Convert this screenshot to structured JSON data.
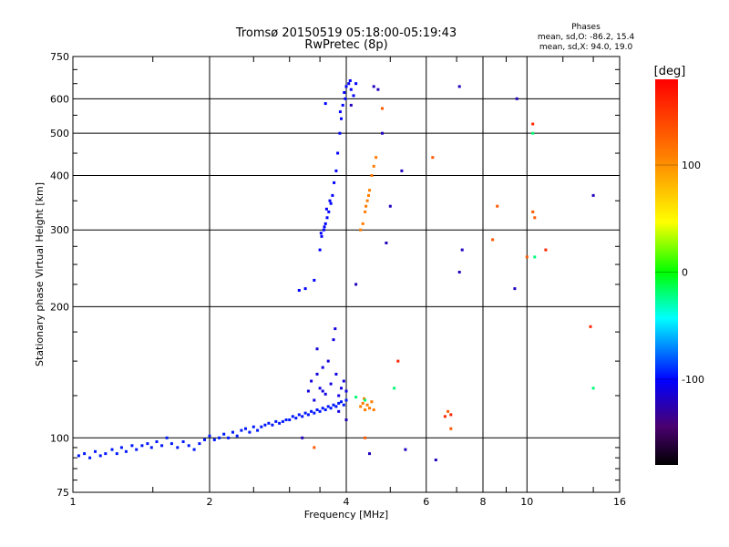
{
  "chart_data": {
    "type": "scatter",
    "title": "Tromsø 20150519 05:18:00-05:19:43",
    "subtitle": "RwPretec (8p)",
    "xlabel": "Frequency [MHz]",
    "ylabel": "Stationary phase Virtual Height [km]",
    "x_scale": "log",
    "y_scale": "log",
    "xlim": [
      1,
      16
    ],
    "ylim": [
      75,
      750
    ],
    "x_ticks": [
      1,
      2,
      4,
      6,
      8,
      10,
      16
    ],
    "x_tick_labels": [
      "1",
      "2",
      "4",
      "6",
      "8",
      "10",
      "16"
    ],
    "y_ticks": [
      75,
      100,
      200,
      300,
      400,
      500,
      600,
      750
    ],
    "y_tick_labels": [
      "75",
      "100",
      "200",
      "300",
      "400",
      "500",
      "600",
      "750"
    ],
    "grid": true,
    "phases": {
      "title": "Phases",
      "line_o": "mean, sd,O: -86.2, 15.4",
      "line_x": "mean, sd,X:  94.0, 19.0"
    },
    "colorbar": {
      "label": "[deg]",
      "min": -180,
      "max": 180,
      "ticks": [
        100,
        0,
        -100
      ],
      "tick_labels": [
        "100",
        "0",
        "-100"
      ]
    },
    "series": [
      {
        "phase_deg": -95,
        "points": [
          [
            1.03,
            91
          ],
          [
            1.06,
            92
          ],
          [
            1.09,
            90
          ],
          [
            1.12,
            93
          ],
          [
            1.15,
            91
          ],
          [
            1.18,
            92
          ],
          [
            1.22,
            94
          ],
          [
            1.25,
            92
          ],
          [
            1.28,
            95
          ],
          [
            1.31,
            93
          ],
          [
            1.35,
            96
          ],
          [
            1.38,
            94
          ],
          [
            1.42,
            96
          ],
          [
            1.46,
            97
          ],
          [
            1.49,
            95
          ],
          [
            1.53,
            98
          ],
          [
            1.57,
            96
          ],
          [
            1.61,
            100
          ],
          [
            1.65,
            97
          ],
          [
            1.7,
            95
          ],
          [
            1.75,
            98
          ],
          [
            1.8,
            96
          ],
          [
            1.85,
            94
          ],
          [
            1.9,
            97
          ],
          [
            1.95,
            99
          ],
          [
            2.0,
            101
          ],
          [
            2.05,
            99
          ],
          [
            2.1,
            100
          ],
          [
            2.15,
            102
          ],
          [
            2.2,
            100
          ],
          [
            2.25,
            103
          ],
          [
            2.3,
            101
          ],
          [
            2.35,
            104
          ],
          [
            2.4,
            105
          ],
          [
            2.45,
            103
          ],
          [
            2.5,
            106
          ],
          [
            2.55,
            104
          ],
          [
            2.6,
            106
          ],
          [
            2.65,
            107
          ],
          [
            2.7,
            108
          ],
          [
            2.75,
            107
          ],
          [
            2.8,
            109
          ],
          [
            2.85,
            108
          ],
          [
            2.9,
            109
          ],
          [
            2.95,
            110
          ],
          [
            3.0,
            110
          ],
          [
            3.05,
            112
          ],
          [
            3.1,
            111
          ],
          [
            3.15,
            113
          ],
          [
            3.2,
            112
          ],
          [
            3.25,
            114
          ],
          [
            3.3,
            113
          ],
          [
            3.35,
            115
          ],
          [
            3.4,
            114
          ],
          [
            3.45,
            116
          ],
          [
            3.5,
            115
          ],
          [
            3.55,
            117
          ],
          [
            3.6,
            116
          ],
          [
            3.65,
            118
          ],
          [
            3.7,
            117
          ],
          [
            3.75,
            119
          ],
          [
            3.8,
            118
          ],
          [
            3.85,
            120
          ],
          [
            3.9,
            121
          ],
          [
            3.95,
            119
          ],
          [
            4.0,
            122
          ]
        ]
      },
      {
        "phase_deg": -110,
        "points": [
          [
            3.3,
            128
          ],
          [
            3.35,
            135
          ],
          [
            3.4,
            122
          ],
          [
            3.45,
            140
          ],
          [
            3.5,
            130
          ],
          [
            3.55,
            145
          ],
          [
            3.6,
            126
          ],
          [
            3.65,
            150
          ],
          [
            3.7,
            133
          ],
          [
            3.75,
            168
          ],
          [
            3.78,
            178
          ],
          [
            3.8,
            140
          ],
          [
            3.85,
            125
          ],
          [
            3.9,
            130
          ],
          [
            3.95,
            135
          ],
          [
            4.0,
            128
          ],
          [
            3.45,
            160
          ],
          [
            3.55,
            128
          ],
          [
            3.85,
            115
          ]
        ]
      },
      {
        "phase_deg": -100,
        "points": [
          [
            3.15,
            218
          ],
          [
            3.25,
            220
          ],
          [
            3.4,
            230
          ],
          [
            3.5,
            270
          ],
          [
            3.53,
            290
          ],
          [
            3.57,
            300
          ],
          [
            3.6,
            310
          ],
          [
            3.63,
            320
          ],
          [
            3.66,
            330
          ],
          [
            3.7,
            345
          ],
          [
            3.73,
            360
          ],
          [
            3.76,
            385
          ],
          [
            3.8,
            410
          ],
          [
            3.83,
            450
          ],
          [
            3.87,
            500
          ],
          [
            3.9,
            540
          ],
          [
            3.93,
            580
          ],
          [
            3.96,
            620
          ],
          [
            4.0,
            640
          ],
          [
            4.05,
            650
          ],
          [
            4.1,
            630
          ],
          [
            4.15,
            610
          ],
          [
            4.2,
            650
          ],
          [
            3.52,
            295
          ],
          [
            3.58,
            305
          ],
          [
            3.62,
            335
          ],
          [
            3.68,
            350
          ],
          [
            3.88,
            560
          ],
          [
            3.98,
            600
          ],
          [
            4.08,
            660
          ],
          [
            3.6,
            585
          ]
        ]
      },
      {
        "phase_deg": 110,
        "points": [
          [
            4.3,
            300
          ],
          [
            4.35,
            310
          ],
          [
            4.4,
            330
          ],
          [
            4.45,
            350
          ],
          [
            4.5,
            370
          ],
          [
            4.55,
            400
          ],
          [
            4.6,
            420
          ],
          [
            4.65,
            440
          ],
          [
            4.48,
            360
          ],
          [
            4.42,
            340
          ],
          [
            4.3,
            118
          ],
          [
            4.35,
            120
          ],
          [
            4.4,
            116
          ],
          [
            4.45,
            119
          ],
          [
            4.5,
            117
          ],
          [
            4.55,
            121
          ],
          [
            4.38,
            123
          ],
          [
            4.6,
            116
          ]
        ]
      },
      {
        "phase_deg": -120,
        "points": [
          [
            4.6,
            640
          ],
          [
            4.7,
            630
          ],
          [
            5.3,
            410
          ],
          [
            4.1,
            580
          ],
          [
            4.8,
            500
          ],
          [
            5.0,
            340
          ],
          [
            4.9,
            280
          ],
          [
            7.1,
            640
          ],
          [
            7.2,
            270
          ],
          [
            7.1,
            240
          ],
          [
            9.5,
            600
          ],
          [
            9.4,
            220
          ],
          [
            14.0,
            360
          ],
          [
            4.0,
            110
          ],
          [
            3.2,
            100
          ],
          [
            4.2,
            225
          ],
          [
            5.4,
            94
          ],
          [
            6.3,
            89
          ],
          [
            4.5,
            92
          ]
        ]
      },
      {
        "phase_deg": 130,
        "points": [
          [
            4.8,
            570
          ],
          [
            6.2,
            440
          ],
          [
            8.6,
            340
          ],
          [
            8.4,
            285
          ],
          [
            10.3,
            330
          ],
          [
            10.4,
            320
          ],
          [
            10.0,
            260
          ],
          [
            4.4,
            100
          ],
          [
            3.4,
            95
          ],
          [
            6.8,
            105
          ],
          [
            6.7,
            115
          ]
        ]
      },
      {
        "phase_deg": -20,
        "points": [
          [
            10.3,
            500
          ],
          [
            10.4,
            260
          ],
          [
            14.0,
            130
          ],
          [
            5.1,
            130
          ],
          [
            4.4,
            122
          ],
          [
            4.2,
            124
          ]
        ]
      },
      {
        "phase_deg": 160,
        "points": [
          [
            10.3,
            525
          ],
          [
            11.0,
            270
          ],
          [
            13.8,
            180
          ],
          [
            6.6,
            112
          ],
          [
            6.8,
            113
          ],
          [
            5.2,
            150
          ]
        ]
      }
    ]
  }
}
